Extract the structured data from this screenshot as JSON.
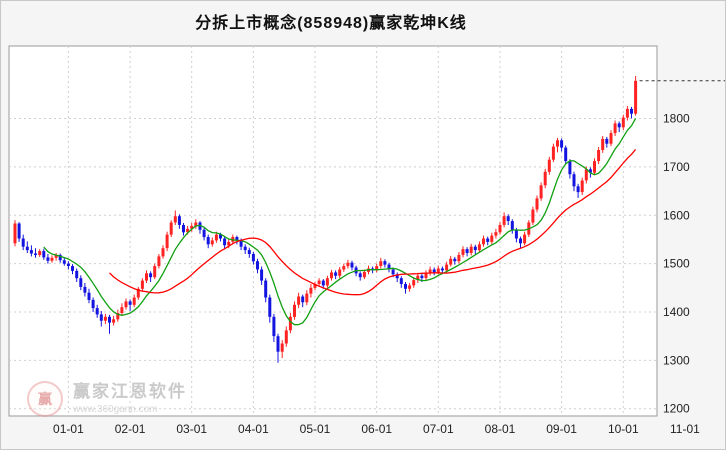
{
  "watermark": {
    "brand": "赢家江恩软件",
    "url": "www.360gann.com",
    "logo_text": "赢"
  },
  "colors": {
    "up": "#ff2222",
    "down": "#1414e0",
    "grid": "#d0d0d0",
    "axis_text": "#222222",
    "plot_border": "#9a9a9a",
    "last_price_line": "#333333"
  },
  "chart_data": {
    "type": "candlestick",
    "title": "分拆上市概念(858948)赢家乾坤K线",
    "xlabel": "",
    "ylabel": "",
    "legend": "none",
    "grid": true,
    "ylim": [
      1185,
      1950
    ],
    "y_ticks": [
      1200,
      1300,
      1400,
      1500,
      1600,
      1700,
      1800
    ],
    "x_ticks": [
      "01-01",
      "02-01",
      "03-01",
      "04-01",
      "05-01",
      "06-01",
      "07-01",
      "08-01",
      "09-01",
      "10-01",
      "11-01"
    ],
    "first_tick_index": 13,
    "candles_per_month": 15,
    "last_price": 1878,
    "ma_lines": [
      {
        "name": "fast",
        "period": 8,
        "color": "#11a011"
      },
      {
        "name": "slow",
        "period": 24,
        "color": "#ff0000"
      }
    ],
    "candles": [
      [
        1542,
        1590,
        1536,
        1583
      ],
      [
        1583,
        1586,
        1545,
        1552
      ],
      [
        1552,
        1560,
        1528,
        1535
      ],
      [
        1535,
        1546,
        1522,
        1528
      ],
      [
        1528,
        1538,
        1515,
        1521
      ],
      [
        1521,
        1532,
        1512,
        1518
      ],
      [
        1518,
        1530,
        1514,
        1526
      ],
      [
        1526,
        1531,
        1508,
        1513
      ],
      [
        1513,
        1520,
        1500,
        1506
      ],
      [
        1506,
        1517,
        1502,
        1512
      ],
      [
        1512,
        1522,
        1506,
        1518
      ],
      [
        1518,
        1521,
        1502,
        1507
      ],
      [
        1507,
        1512,
        1496,
        1500
      ],
      [
        1500,
        1505,
        1488,
        1495
      ],
      [
        1495,
        1499,
        1478,
        1485
      ],
      [
        1485,
        1490,
        1462,
        1470
      ],
      [
        1470,
        1476,
        1445,
        1452
      ],
      [
        1452,
        1460,
        1432,
        1440
      ],
      [
        1440,
        1448,
        1418,
        1425
      ],
      [
        1425,
        1430,
        1400,
        1408
      ],
      [
        1408,
        1415,
        1388,
        1395
      ],
      [
        1395,
        1402,
        1370,
        1382
      ],
      [
        1382,
        1396,
        1375,
        1390
      ],
      [
        1390,
        1394,
        1355,
        1378
      ],
      [
        1378,
        1392,
        1372,
        1385
      ],
      [
        1385,
        1405,
        1380,
        1398
      ],
      [
        1398,
        1418,
        1392,
        1410
      ],
      [
        1410,
        1428,
        1405,
        1422
      ],
      [
        1422,
        1426,
        1402,
        1415
      ],
      [
        1415,
        1436,
        1410,
        1430
      ],
      [
        1430,
        1452,
        1425,
        1448
      ],
      [
        1448,
        1470,
        1442,
        1465
      ],
      [
        1465,
        1486,
        1460,
        1480
      ],
      [
        1480,
        1484,
        1462,
        1472
      ],
      [
        1472,
        1500,
        1468,
        1495
      ],
      [
        1495,
        1520,
        1490,
        1515
      ],
      [
        1515,
        1538,
        1510,
        1532
      ],
      [
        1532,
        1566,
        1526,
        1560
      ],
      [
        1560,
        1590,
        1555,
        1585
      ],
      [
        1585,
        1610,
        1580,
        1598
      ],
      [
        1598,
        1602,
        1572,
        1580
      ],
      [
        1580,
        1584,
        1558,
        1565
      ],
      [
        1565,
        1578,
        1560,
        1572
      ],
      [
        1572,
        1584,
        1566,
        1578
      ],
      [
        1578,
        1592,
        1572,
        1585
      ],
      [
        1585,
        1588,
        1562,
        1570
      ],
      [
        1570,
        1574,
        1548,
        1555
      ],
      [
        1555,
        1560,
        1532,
        1540
      ],
      [
        1540,
        1554,
        1535,
        1548
      ],
      [
        1548,
        1566,
        1543,
        1560
      ],
      [
        1560,
        1564,
        1546,
        1552
      ],
      [
        1552,
        1556,
        1530,
        1538
      ],
      [
        1538,
        1550,
        1532,
        1545
      ],
      [
        1545,
        1560,
        1540,
        1555
      ],
      [
        1555,
        1558,
        1540,
        1548
      ],
      [
        1548,
        1552,
        1528,
        1535
      ],
      [
        1535,
        1540,
        1520,
        1528
      ],
      [
        1528,
        1533,
        1512,
        1520
      ],
      [
        1520,
        1524,
        1498,
        1505
      ],
      [
        1505,
        1510,
        1480,
        1488
      ],
      [
        1488,
        1494,
        1456,
        1465
      ],
      [
        1465,
        1470,
        1420,
        1430
      ],
      [
        1430,
        1436,
        1378,
        1390
      ],
      [
        1390,
        1396,
        1338,
        1350
      ],
      [
        1350,
        1355,
        1295,
        1318
      ],
      [
        1318,
        1342,
        1305,
        1335
      ],
      [
        1335,
        1370,
        1328,
        1362
      ],
      [
        1362,
        1398,
        1356,
        1390
      ],
      [
        1390,
        1422,
        1384,
        1415
      ],
      [
        1415,
        1440,
        1408,
        1432
      ],
      [
        1432,
        1436,
        1410,
        1420
      ],
      [
        1420,
        1445,
        1414,
        1438
      ],
      [
        1438,
        1458,
        1430,
        1450
      ],
      [
        1450,
        1462,
        1445,
        1458
      ],
      [
        1458,
        1470,
        1452,
        1465
      ],
      [
        1465,
        1468,
        1448,
        1455
      ],
      [
        1455,
        1475,
        1450,
        1470
      ],
      [
        1470,
        1487,
        1465,
        1482
      ],
      [
        1482,
        1486,
        1468,
        1475
      ],
      [
        1475,
        1493,
        1470,
        1488
      ],
      [
        1488,
        1500,
        1483,
        1495
      ],
      [
        1495,
        1508,
        1490,
        1502
      ],
      [
        1502,
        1506,
        1486,
        1492
      ],
      [
        1492,
        1496,
        1474,
        1480
      ],
      [
        1480,
        1484,
        1465,
        1472
      ],
      [
        1472,
        1488,
        1468,
        1483
      ],
      [
        1483,
        1496,
        1478,
        1490
      ],
      [
        1490,
        1494,
        1480,
        1486
      ],
      [
        1486,
        1500,
        1482,
        1495
      ],
      [
        1495,
        1512,
        1490,
        1505
      ],
      [
        1505,
        1509,
        1492,
        1498
      ],
      [
        1498,
        1502,
        1482,
        1488
      ],
      [
        1488,
        1492,
        1472,
        1478
      ],
      [
        1478,
        1482,
        1462,
        1470
      ],
      [
        1470,
        1474,
        1450,
        1458
      ],
      [
        1458,
        1462,
        1438,
        1448
      ],
      [
        1448,
        1460,
        1442,
        1455
      ],
      [
        1455,
        1472,
        1450,
        1466
      ],
      [
        1466,
        1481,
        1460,
        1475
      ],
      [
        1475,
        1479,
        1462,
        1470
      ],
      [
        1470,
        1486,
        1465,
        1480
      ],
      [
        1480,
        1494,
        1475,
        1488
      ],
      [
        1488,
        1492,
        1476,
        1482
      ],
      [
        1482,
        1496,
        1478,
        1490
      ],
      [
        1490,
        1494,
        1479,
        1486
      ],
      [
        1486,
        1504,
        1482,
        1498
      ],
      [
        1498,
        1516,
        1494,
        1510
      ],
      [
        1510,
        1514,
        1498,
        1505
      ],
      [
        1505,
        1524,
        1500,
        1518
      ],
      [
        1518,
        1536,
        1513,
        1530
      ],
      [
        1530,
        1534,
        1515,
        1522
      ],
      [
        1522,
        1541,
        1517,
        1535
      ],
      [
        1535,
        1539,
        1520,
        1528
      ],
      [
        1528,
        1546,
        1523,
        1540
      ],
      [
        1540,
        1558,
        1535,
        1552
      ],
      [
        1552,
        1556,
        1538,
        1545
      ],
      [
        1545,
        1564,
        1540,
        1558
      ],
      [
        1558,
        1572,
        1552,
        1565
      ],
      [
        1565,
        1586,
        1560,
        1580
      ],
      [
        1580,
        1606,
        1575,
        1598
      ],
      [
        1598,
        1602,
        1580,
        1588
      ],
      [
        1588,
        1592,
        1562,
        1570
      ],
      [
        1570,
        1574,
        1544,
        1552
      ],
      [
        1552,
        1556,
        1532,
        1542
      ],
      [
        1542,
        1566,
        1538,
        1560
      ],
      [
        1560,
        1590,
        1555,
        1585
      ],
      [
        1585,
        1618,
        1580,
        1612
      ],
      [
        1612,
        1641,
        1606,
        1635
      ],
      [
        1635,
        1668,
        1630,
        1662
      ],
      [
        1662,
        1696,
        1656,
        1690
      ],
      [
        1690,
        1721,
        1684,
        1715
      ],
      [
        1715,
        1748,
        1710,
        1742
      ],
      [
        1742,
        1760,
        1730,
        1755
      ],
      [
        1755,
        1759,
        1732,
        1740
      ],
      [
        1740,
        1744,
        1705,
        1712
      ],
      [
        1712,
        1716,
        1676,
        1685
      ],
      [
        1685,
        1690,
        1650,
        1660
      ],
      [
        1660,
        1665,
        1636,
        1648
      ],
      [
        1648,
        1678,
        1642,
        1672
      ],
      [
        1672,
        1701,
        1666,
        1695
      ],
      [
        1695,
        1699,
        1678,
        1688
      ],
      [
        1688,
        1718,
        1683,
        1712
      ],
      [
        1712,
        1741,
        1706,
        1735
      ],
      [
        1735,
        1764,
        1729,
        1758
      ],
      [
        1758,
        1762,
        1740,
        1748
      ],
      [
        1748,
        1776,
        1743,
        1770
      ],
      [
        1770,
        1796,
        1764,
        1790
      ],
      [
        1790,
        1794,
        1772,
        1782
      ],
      [
        1782,
        1808,
        1776,
        1802
      ],
      [
        1802,
        1826,
        1796,
        1820
      ],
      [
        1820,
        1824,
        1800,
        1810
      ],
      [
        1810,
        1888,
        1806,
        1878
      ]
    ]
  }
}
